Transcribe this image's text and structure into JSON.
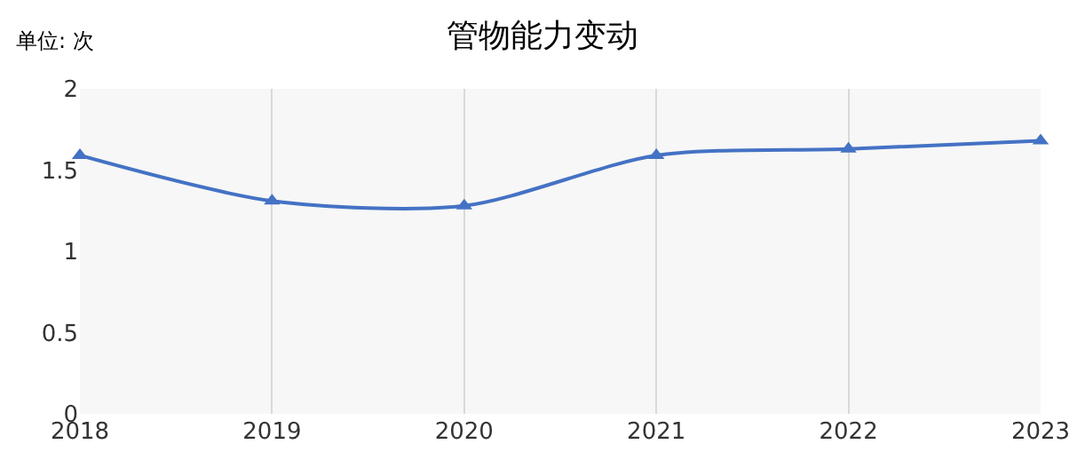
{
  "chart_data": {
    "type": "line",
    "title": "管物能力变动",
    "annotations": [
      "单位: 次"
    ],
    "categories": [
      "2018",
      "2019",
      "2020",
      "2021",
      "2022",
      "2023"
    ],
    "series": [
      {
        "color": "#4472c4",
        "values": [
          1.59,
          1.31,
          1.28,
          1.59,
          1.63,
          1.68
        ]
      }
    ],
    "ylim": [
      0,
      2
    ],
    "yticks": [
      0,
      0.5,
      1,
      1.5,
      2
    ],
    "grid": "x",
    "marker": "triangle",
    "line_style": "solid"
  }
}
